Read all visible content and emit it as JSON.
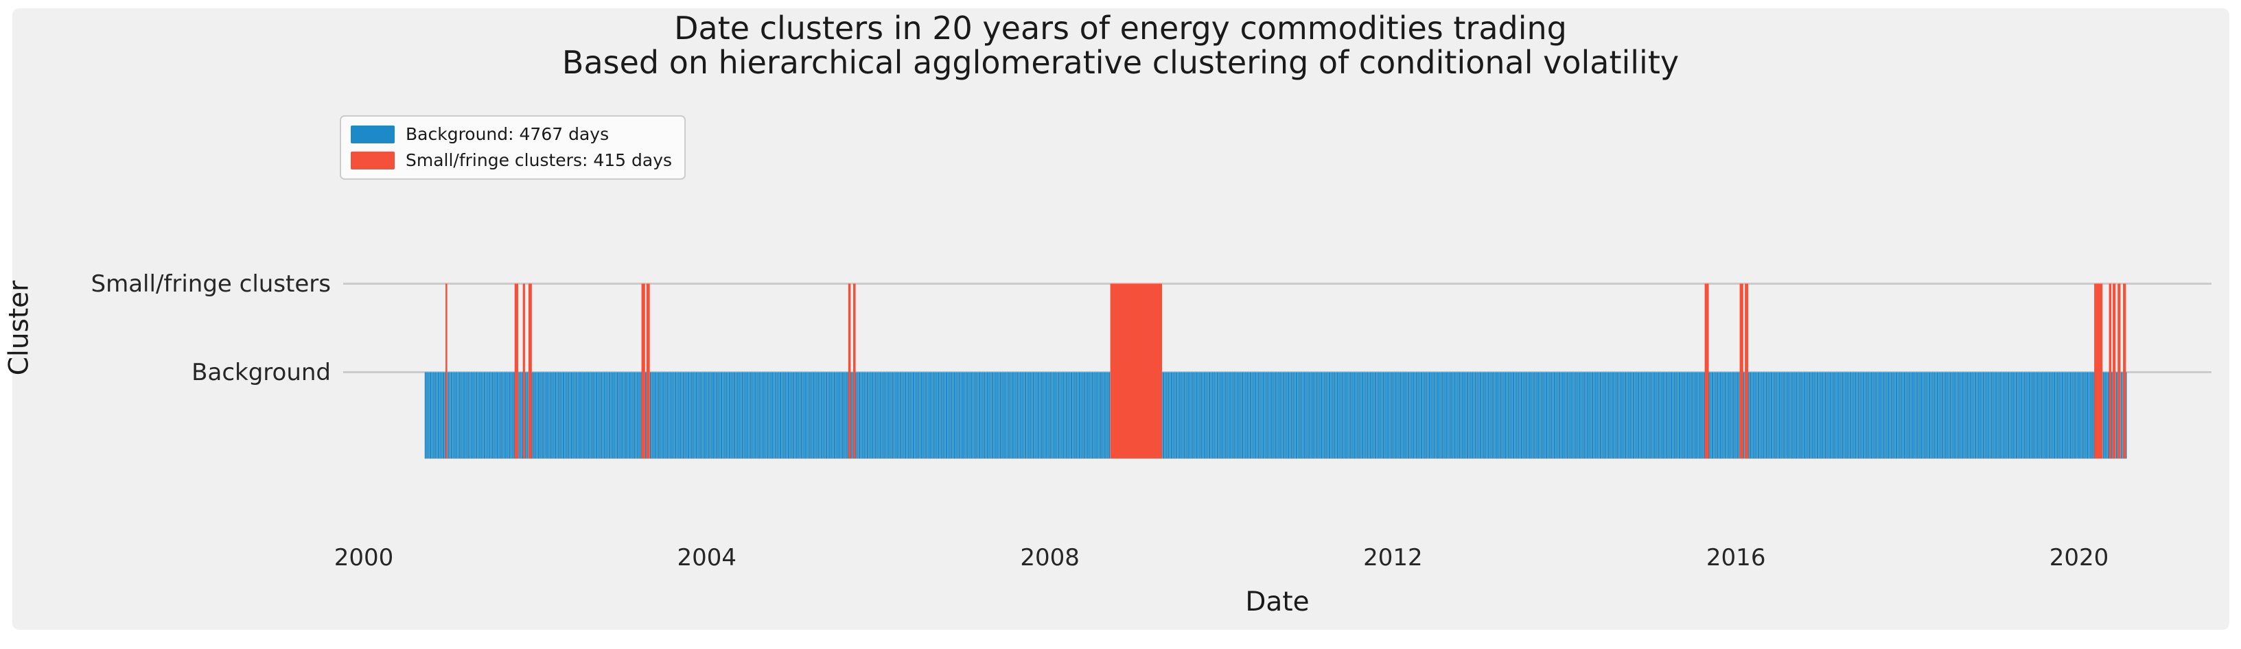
{
  "title": {
    "line1": "Date clusters in 20 years of energy commodities trading",
    "line2": "Based on hierarchical agglomerative clustering of conditional volatility"
  },
  "legend": {
    "items": [
      {
        "label": "Background: 4767 days",
        "color": "#1c8ac9"
      },
      {
        "label": "Small/fringe clusters: 415 days",
        "color": "#f5503a"
      }
    ]
  },
  "axes": {
    "x_label": "Date",
    "y_label": "Cluster",
    "x_ticks": [
      2000,
      2004,
      2008,
      2012,
      2016,
      2020
    ],
    "y_ticks": [
      "Small/fringe clusters",
      "Background"
    ],
    "grid_color": "#cbcbcb",
    "background_color": "#f0f0f0"
  },
  "chart_data": {
    "type": "eventplot",
    "title": "Date clusters in 20 years of energy commodities trading",
    "subtitle": "Based on hierarchical agglomerative clustering of conditional volatility",
    "xlabel": "Date",
    "ylabel": "Cluster",
    "x_ticks_years": [
      2000,
      2004,
      2008,
      2012,
      2016,
      2020
    ],
    "x_range_years": [
      1999.76,
      2020.97
    ],
    "rows": [
      {
        "label": "Small/fringe clusters",
        "level": 2,
        "color": "#f5503a",
        "days": 415
      },
      {
        "label": "Background",
        "level": 1,
        "color": "#1c8ac9",
        "days": 4767
      }
    ],
    "events_start": "2000-09-18",
    "events_end": "2020-07-22",
    "trading_days_only": true,
    "legend_entries": [
      "Background: 4767 days",
      "Small/fringge clusters: 415 days"
    ],
    "fringe_cluster_date_ranges": [
      [
        "2000-12-18",
        "2000-12-19"
      ],
      [
        "2001-10-08",
        "2001-10-17"
      ],
      [
        "2001-11-12",
        "2001-11-15"
      ],
      [
        "2001-12-06",
        "2001-12-16"
      ],
      [
        "2003-04-01",
        "2003-04-10"
      ],
      [
        "2003-04-22",
        "2003-04-30"
      ],
      [
        "2005-08-29",
        "2005-09-02"
      ],
      [
        "2005-09-19",
        "2005-09-23"
      ],
      [
        "2008-09-18",
        "2009-04-20"
      ],
      [
        "2015-08-24",
        "2015-09-04"
      ],
      [
        "2016-01-20",
        "2016-01-29"
      ],
      [
        "2016-02-11",
        "2016-02-19"
      ],
      [
        "2020-03-09",
        "2020-04-07"
      ],
      [
        "2020-05-11",
        "2020-05-15"
      ],
      [
        "2020-05-27",
        "2020-06-02"
      ],
      [
        "2020-06-17",
        "2020-06-23"
      ],
      [
        "2020-07-10",
        "2020-07-16"
      ]
    ],
    "grid": true,
    "legend_position": "upper-left"
  }
}
